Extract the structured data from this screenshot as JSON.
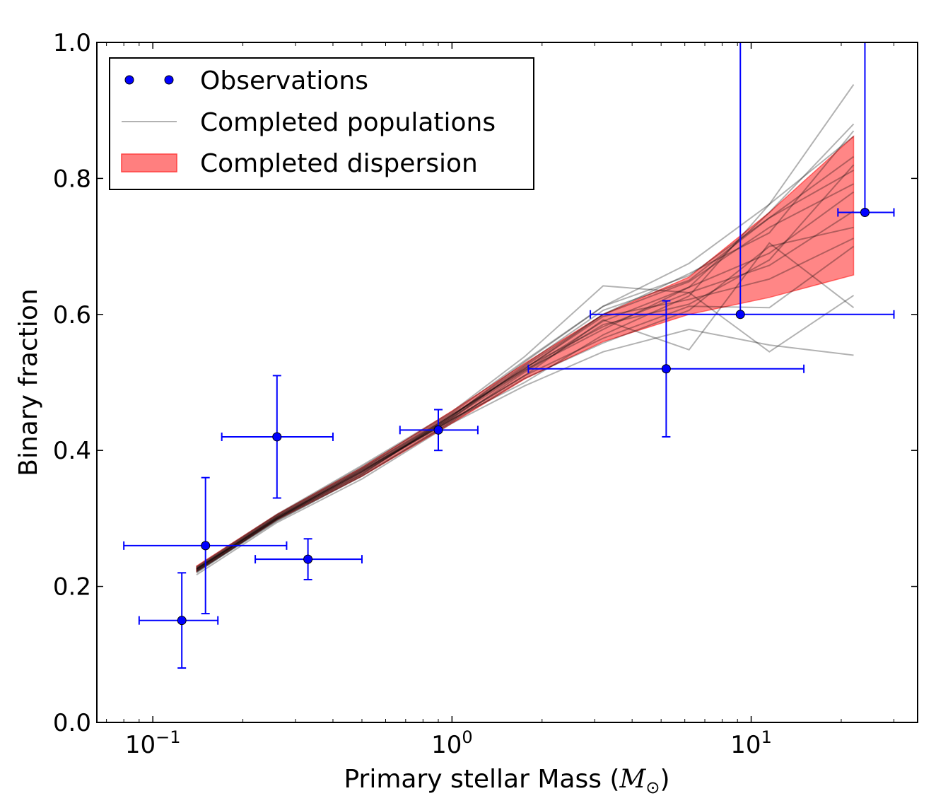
{
  "chart_data": {
    "type": "scatter",
    "xlabel": "Primary stellar Mass (",
    "xlabel_math": "M",
    "xlabel_math_sub": "⊙",
    "xlabel_close": ")",
    "ylabel": "Binary fraction",
    "x_scale": "log",
    "xlim": [
      0.065,
      36
    ],
    "ylim": [
      0.0,
      1.0
    ],
    "x_ticks": [
      {
        "value": 0.1,
        "base": "10",
        "exp": "−1"
      },
      {
        "value": 1,
        "base": "10",
        "exp": "0"
      },
      {
        "value": 10,
        "base": "10",
        "exp": "1"
      }
    ],
    "y_ticks": [
      {
        "value": 0.0,
        "label": "0.0"
      },
      {
        "value": 0.2,
        "label": "0.2"
      },
      {
        "value": 0.4,
        "label": "0.4"
      },
      {
        "value": 0.6,
        "label": "0.6"
      },
      {
        "value": 0.8,
        "label": "0.8"
      },
      {
        "value": 1.0,
        "label": "1.0"
      }
    ],
    "grid": false,
    "legend_placement": "top-left",
    "legend": [
      {
        "label": "Observations",
        "kind": "markers"
      },
      {
        "label": "Completed populations",
        "kind": "line"
      },
      {
        "label": "Completed dispersion",
        "kind": "patch"
      }
    ],
    "colors": {
      "observations": "#0000ff",
      "populations": "#000000",
      "dispersion_fill": "#ff7f7f",
      "dispersion_edge": "#ff0000"
    },
    "observations": [
      {
        "x": 0.125,
        "y": 0.15,
        "xerr": [
          0.09,
          0.165
        ],
        "yerr": [
          0.08,
          0.22
        ]
      },
      {
        "x": 0.15,
        "y": 0.26,
        "xerr": [
          0.08,
          0.28
        ],
        "yerr": [
          0.16,
          0.36
        ]
      },
      {
        "x": 0.26,
        "y": 0.42,
        "xerr": [
          0.17,
          0.4
        ],
        "yerr": [
          0.33,
          0.51
        ]
      },
      {
        "x": 0.33,
        "y": 0.24,
        "xerr": [
          0.22,
          0.5
        ],
        "yerr": [
          0.21,
          0.27
        ]
      },
      {
        "x": 0.9,
        "y": 0.43,
        "xerr": [
          0.67,
          1.22
        ],
        "yerr": [
          0.4,
          0.46
        ]
      },
      {
        "x": 5.2,
        "y": 0.52,
        "xerr": [
          1.8,
          15
        ],
        "yerr": [
          0.42,
          0.62
        ]
      },
      {
        "x": 9.2,
        "y": 0.6,
        "xerr": [
          2.9,
          30
        ],
        "yerr": [
          0.6,
          1.0
        ]
      },
      {
        "x": 24,
        "y": 0.75,
        "xerr": [
          19.5,
          30
        ],
        "yerr": [
          0.75,
          1.0
        ]
      }
    ],
    "dispersion": {
      "x": [
        0.14,
        0.26,
        0.5,
        1.0,
        1.75,
        3.2,
        6.2,
        11.5,
        22
      ],
      "lower": [
        0.222,
        0.298,
        0.362,
        0.44,
        0.505,
        0.56,
        0.6,
        0.625,
        0.658
      ],
      "upper": [
        0.23,
        0.306,
        0.375,
        0.458,
        0.528,
        0.6,
        0.655,
        0.75,
        0.862
      ]
    },
    "populations": {
      "x": [
        0.14,
        0.26,
        0.5,
        1.0,
        1.75,
        3.2,
        6.2,
        11.5,
        22
      ],
      "series": [
        {
          "values": [
            0.225,
            0.3,
            0.372,
            0.449,
            0.522,
            0.582,
            0.632,
            0.672,
            0.752
          ]
        },
        {
          "values": [
            0.222,
            0.298,
            0.365,
            0.452,
            0.52,
            0.6,
            0.648,
            0.728,
            0.792
          ]
        },
        {
          "values": [
            0.226,
            0.302,
            0.369,
            0.445,
            0.51,
            0.565,
            0.612,
            0.61,
            0.7
          ]
        },
        {
          "values": [
            0.228,
            0.305,
            0.376,
            0.455,
            0.532,
            0.612,
            0.657,
            0.742,
            0.832
          ]
        },
        {
          "values": [
            0.224,
            0.299,
            0.368,
            0.448,
            0.517,
            0.59,
            0.64,
            0.69,
            0.78
          ]
        },
        {
          "values": [
            0.222,
            0.297,
            0.362,
            0.442,
            0.506,
            0.558,
            0.606,
            0.7,
            0.728
          ]
        },
        {
          "values": [
            0.226,
            0.303,
            0.374,
            0.451,
            0.526,
            0.606,
            0.65,
            0.742,
            0.812
          ]
        },
        {
          "values": [
            0.227,
            0.304,
            0.373,
            0.453,
            0.52,
            0.597,
            0.622,
            0.652,
            0.712
          ]
        },
        {
          "values": [
            0.223,
            0.3,
            0.367,
            0.446,
            0.5,
            0.57,
            0.627,
            0.762,
            0.862
          ]
        },
        {
          "values": [
            0.225,
            0.301,
            0.37,
            0.447,
            0.524,
            0.6,
            0.66,
            0.72,
            0.87
          ]
        },
        {
          "values": [
            0.221,
            0.296,
            0.363,
            0.443,
            0.515,
            0.585,
            0.615,
            0.68,
            0.82
          ]
        },
        {
          "values": [
            0.229,
            0.306,
            0.378,
            0.457,
            0.538,
            0.642,
            0.632,
            0.545,
            0.628
          ]
        },
        {
          "values": [
            0.217,
            0.294,
            0.358,
            0.44,
            0.495,
            0.545,
            0.578,
            0.555,
            0.54
          ]
        },
        {
          "values": [
            0.22,
            0.299,
            0.365,
            0.45,
            0.53,
            0.612,
            0.675,
            0.762,
            0.938
          ]
        },
        {
          "values": [
            0.224,
            0.302,
            0.371,
            0.445,
            0.51,
            0.592,
            0.548,
            0.705,
            0.61
          ]
        },
        {
          "values": [
            0.226,
            0.3,
            0.369,
            0.452,
            0.518,
            0.578,
            0.64,
            0.75,
            0.88
          ]
        }
      ]
    }
  }
}
